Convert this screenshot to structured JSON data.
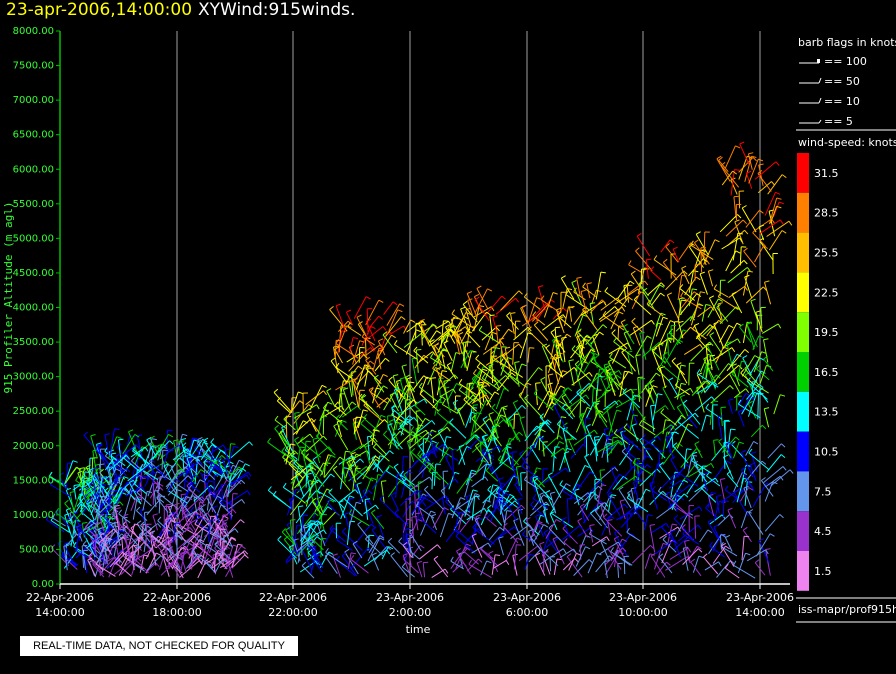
{
  "header": {
    "date": "23-apr-2006,14:00:00",
    "name": "XYWind:915winds."
  },
  "chart_data": {
    "type": "scatter",
    "ylabel": "915 Profiler Altitude (m agl)",
    "xlabel": "time",
    "ylim": [
      0,
      8000
    ],
    "y_ticks": [
      "0.00",
      "500.00",
      "1000.00",
      "1500.00",
      "2000.00",
      "2500.00",
      "3000.00",
      "3500.00",
      "4000.00",
      "4500.00",
      "5000.00",
      "5500.00",
      "6000.00",
      "6500.00",
      "7000.00",
      "7500.00",
      "8000.00"
    ],
    "x_ticks": [
      {
        "date": "22-Apr-2006",
        "time": "14:00:00"
      },
      {
        "date": "22-Apr-2006",
        "time": "18:00:00"
      },
      {
        "date": "22-Apr-2006",
        "time": "22:00:00"
      },
      {
        "date": "23-Apr-2006",
        "time": "2:00:00"
      },
      {
        "date": "23-Apr-2006",
        "time": "6:00:00"
      },
      {
        "date": "23-Apr-2006",
        "time": "10:00:00"
      },
      {
        "date": "23-Apr-2006",
        "time": "14:00:00"
      }
    ],
    "vertical_grid": true,
    "series": []
  },
  "legend": {
    "barb_title": "barb flags in knots",
    "barbs": [
      "== 100",
      "== 50",
      "== 10",
      "== 5"
    ],
    "speed_title": "wind-speed: knots",
    "speed_bins": [
      {
        "label": "31.5",
        "color": "#ff0000"
      },
      {
        "label": "28.5",
        "color": "#ff8000"
      },
      {
        "label": "25.5",
        "color": "#ffbf00"
      },
      {
        "label": "22.5",
        "color": "#ffff00"
      },
      {
        "label": "19.5",
        "color": "#80ff00"
      },
      {
        "label": "16.5",
        "color": "#00d000"
      },
      {
        "label": "13.5",
        "color": "#00ffff"
      },
      {
        "label": "10.5",
        "color": "#0000ff"
      },
      {
        "label": "7.5",
        "color": "#6495ed"
      },
      {
        "label": "4.5",
        "color": "#9932cc"
      },
      {
        "label": "1.5",
        "color": "#ee82ee"
      }
    ]
  },
  "source": "iss-mapr/prof915h",
  "footer": "REAL-TIME DATA, NOT CHECKED FOR QUALITY"
}
